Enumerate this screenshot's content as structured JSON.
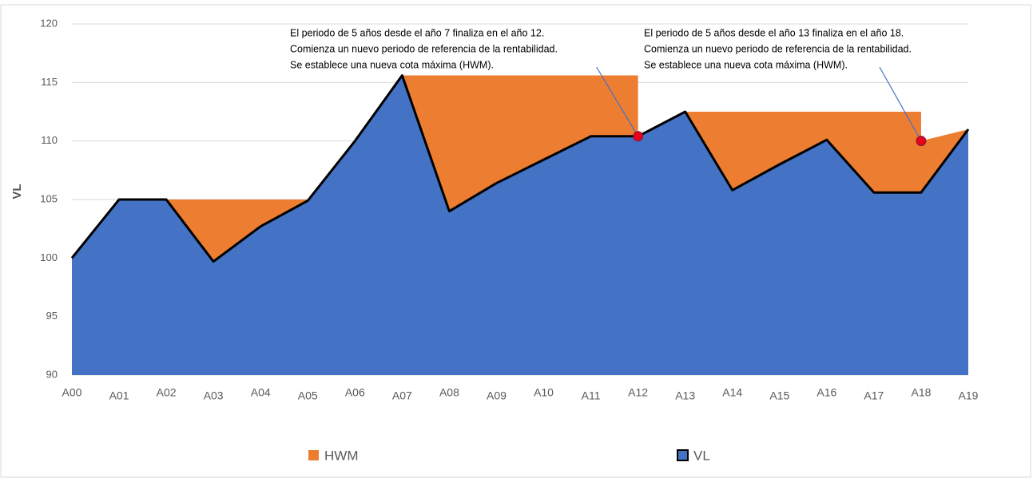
{
  "chart_data": {
    "type": "area",
    "y_label": "VL",
    "categories": [
      "A00",
      "A01",
      "A02",
      "A03",
      "A04",
      "A05",
      "A06",
      "A07",
      "A08",
      "A09",
      "A10",
      "A11",
      "A12",
      "A13",
      "A14",
      "A15",
      "A16",
      "A17",
      "A18",
      "A19"
    ],
    "series": [
      {
        "name": "HWM",
        "color": "#ed7d31",
        "values": [
          100,
          105,
          105,
          105,
          105,
          105,
          110,
          115.6,
          115.6,
          115.6,
          115.6,
          115.6,
          110.4,
          112.5,
          112.5,
          112.5,
          112.5,
          112.5,
          110,
          111
        ]
      },
      {
        "name": "VL",
        "color": "#4472c4",
        "line_color": "#000000",
        "values": [
          100,
          105,
          105,
          99.7,
          102.7,
          104.9,
          110,
          115.6,
          104,
          106.4,
          108.4,
          110.4,
          110.4,
          112.5,
          105.8,
          108,
          110.1,
          105.6,
          105.6,
          111
        ]
      }
    ],
    "ylim": [
      90,
      120
    ],
    "yticks": [
      90,
      95,
      100,
      105,
      110,
      115,
      120
    ],
    "grid": true,
    "legend": "bottom",
    "annotations": [
      {
        "category": "A12",
        "y": 110.4,
        "color": "#e8001c",
        "lines": [
          "El periodo de 5 años desde el año 7 finaliza en el año 12.",
          "Comienza un nuevo periodo de referencia de la rentabilidad.",
          "Se establece una nueva cota máxima (HWM)."
        ]
      },
      {
        "category": "A18",
        "y": 110,
        "color": "#e8001c",
        "lines": [
          "El periodo de 5 años desde el año 13 finaliza en el año 18.",
          "Comienza un nuevo periodo de referencia de la rentabilidad.",
          "Se establece una nueva cota máxima (HWM)."
        ]
      }
    ]
  }
}
